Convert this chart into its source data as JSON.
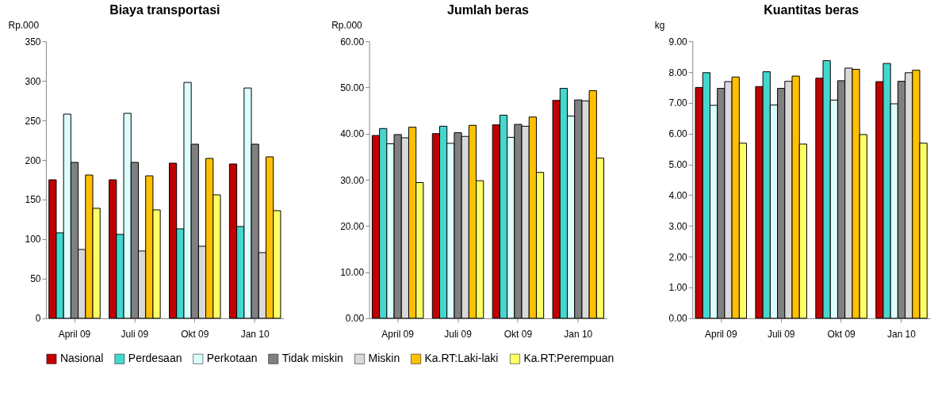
{
  "chart_data": [
    {
      "type": "bar",
      "title": "Biaya transportasi",
      "ylabel": "Rp.000",
      "categories": [
        "April 09",
        "Juli 09",
        "Okt 09",
        "Jan 10"
      ],
      "ylim": [
        0,
        350
      ],
      "yticks": [
        0,
        50,
        100,
        150,
        200,
        250,
        300,
        350
      ],
      "grid": false,
      "legend": "bottom",
      "series": [
        {
          "name": "Nasional",
          "color": "#c00000",
          "values": [
            175,
            175,
            196,
            195
          ]
        },
        {
          "name": "Perdesaan",
          "color": "#44d7ce",
          "values": [
            108,
            106,
            113,
            116
          ]
        },
        {
          "name": "Perkotaan",
          "color": "#dcfffd",
          "values": [
            258,
            259,
            298,
            291
          ]
        },
        {
          "name": "Tidak miskin",
          "color": "#808080",
          "values": [
            197,
            197,
            220,
            220
          ]
        },
        {
          "name": "Miskin",
          "color": "#d9d9d9",
          "values": [
            87,
            85,
            91,
            83
          ]
        },
        {
          "name": "Ka.RT:Laki-laki",
          "color": "#ffc000",
          "values": [
            181,
            180,
            202,
            204
          ]
        },
        {
          "name": "Ka.RT:Perempuan",
          "color": "#ffff66",
          "values": [
            139,
            137,
            156,
            136
          ]
        }
      ]
    },
    {
      "type": "bar",
      "title": "Jumlah beras",
      "ylabel": "Rp.000",
      "categories": [
        "April 09",
        "Juli 09",
        "Okt 09",
        "Jan 10"
      ],
      "ylim": [
        0,
        60
      ],
      "yticks": [
        {
          "value": 0,
          "label": "0.00"
        },
        {
          "value": 10,
          "label": "10.00"
        },
        {
          "value": 20,
          "label": "20.00"
        },
        {
          "value": 30,
          "label": "30.00"
        },
        {
          "value": 40,
          "label": "40.00"
        },
        {
          "value": 50,
          "label": "50.00"
        },
        {
          "value": 60,
          "label": "60.00"
        }
      ],
      "grid": false,
      "legend": "bottom",
      "series": [
        {
          "name": "Nasional",
          "color": "#c00000",
          "values": [
            39.6,
            40.0,
            41.9,
            47.2
          ]
        },
        {
          "name": "Perdesaan",
          "color": "#44d7ce",
          "values": [
            41.1,
            41.6,
            44.0,
            49.8
          ]
        },
        {
          "name": "Perkotaan",
          "color": "#dcfffd",
          "values": [
            37.8,
            37.9,
            39.2,
            43.8
          ]
        },
        {
          "name": "Tidak miskin",
          "color": "#808080",
          "values": [
            39.8,
            40.2,
            42.0,
            47.3
          ]
        },
        {
          "name": "Miskin",
          "color": "#d9d9d9",
          "values": [
            39.1,
            39.4,
            41.6,
            47.1
          ]
        },
        {
          "name": "Ka.RT:Laki-laki",
          "color": "#ffc000",
          "values": [
            41.4,
            41.8,
            43.6,
            49.3
          ]
        },
        {
          "name": "Ka.RT:Perempuan",
          "color": "#ffff66",
          "values": [
            29.4,
            29.8,
            31.6,
            34.7
          ]
        }
      ]
    },
    {
      "type": "bar",
      "title": "Kuantitas beras",
      "ylabel": "kg",
      "categories": [
        "April 09",
        "Juli 09",
        "Okt 09",
        "Jan 10"
      ],
      "ylim": [
        0,
        9
      ],
      "yticks": [
        {
          "value": 0,
          "label": "0.00"
        },
        {
          "value": 1,
          "label": "1.00"
        },
        {
          "value": 2,
          "label": "2.00"
        },
        {
          "value": 3,
          "label": "3.00"
        },
        {
          "value": 4,
          "label": "4.00"
        },
        {
          "value": 5,
          "label": "5.00"
        },
        {
          "value": 6,
          "label": "6.00"
        },
        {
          "value": 7,
          "label": "7.00"
        },
        {
          "value": 8,
          "label": "8.00"
        },
        {
          "value": 9,
          "label": "9.00"
        }
      ],
      "grid": false,
      "legend": "bottom",
      "series": [
        {
          "name": "Nasional",
          "color": "#c00000",
          "values": [
            7.5,
            7.53,
            7.8,
            7.69
          ]
        },
        {
          "name": "Perdesaan",
          "color": "#44d7ce",
          "values": [
            7.98,
            8.01,
            8.37,
            8.28
          ]
        },
        {
          "name": "Perkotaan",
          "color": "#dcfffd",
          "values": [
            6.92,
            6.93,
            7.09,
            6.97
          ]
        },
        {
          "name": "Tidak miskin",
          "color": "#808080",
          "values": [
            7.47,
            7.47,
            7.72,
            7.7
          ]
        },
        {
          "name": "Miskin",
          "color": "#d9d9d9",
          "values": [
            7.69,
            7.7,
            8.13,
            7.98
          ]
        },
        {
          "name": "Ka.RT:Laki-laki",
          "color": "#ffc000",
          "values": [
            7.84,
            7.87,
            8.09,
            8.06
          ]
        },
        {
          "name": "Ka.RT:Perempuan",
          "color": "#ffff66",
          "values": [
            5.69,
            5.66,
            5.97,
            5.69
          ]
        }
      ]
    }
  ]
}
